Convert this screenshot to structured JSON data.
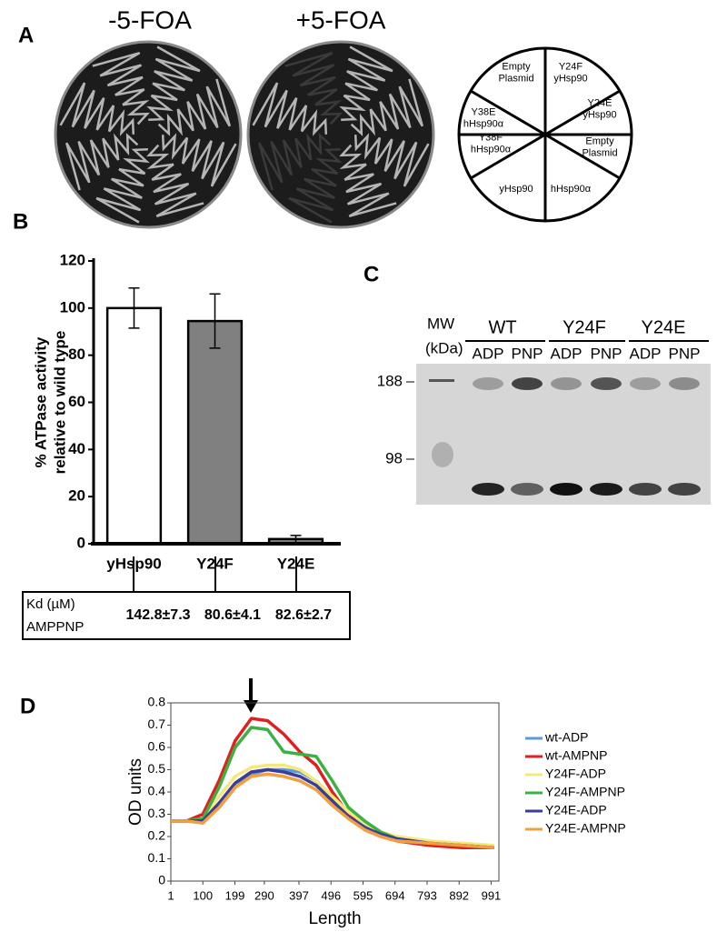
{
  "panel_a": {
    "label": "A",
    "plate_titles": [
      "-5-FOA",
      "+5-FOA"
    ],
    "key_segments": [
      [
        "Empty",
        "Plasmid"
      ],
      [
        "Y24F",
        "yHsp90"
      ],
      [
        "Y24E",
        "yHsp90"
      ],
      [
        "Y38E",
        "hHsp90α"
      ],
      [
        "Y38F",
        "hHsp90α"
      ],
      [
        "Empty",
        "Plasmid"
      ],
      [
        "hHsp90α"
      ],
      [
        "yHsp90"
      ]
    ]
  },
  "panel_b": {
    "label": "B",
    "kd_table": {
      "row_label": [
        "Kd (µM)",
        "AMPPNP"
      ],
      "values": [
        "142.8±7.3",
        "80.6±4.1",
        "82.6±2.7"
      ]
    }
  },
  "panel_c": {
    "label": "C",
    "mw_label": [
      "MW",
      "(kDa)"
    ],
    "groups": [
      "WT",
      "Y24F",
      "Y24E"
    ],
    "lanes": [
      "ADP",
      "PNP",
      "ADP",
      "PNP",
      "ADP",
      "PNP"
    ],
    "markers": [
      188,
      98
    ]
  },
  "panel_d": {
    "label": "D"
  },
  "chart_data": [
    {
      "type": "bar",
      "ylabel": [
        "% ATPase activity",
        "relative to wild type"
      ],
      "categories": [
        "yHsp90",
        "Y24F",
        "Y24E"
      ],
      "values": [
        100,
        94.5,
        2
      ],
      "errors": [
        8.5,
        11.5,
        1.5
      ],
      "colors": [
        "#ffffff",
        "#808080",
        "#808080"
      ],
      "ylim": [
        0,
        120
      ],
      "yticks": [
        0,
        20,
        40,
        60,
        80,
        100,
        120
      ]
    },
    {
      "type": "line",
      "xlabel": "Length",
      "ylabel": "OD units",
      "x": [
        1,
        50,
        100,
        150,
        200,
        250,
        300,
        350,
        400,
        450,
        500,
        550,
        600,
        650,
        700,
        800,
        900,
        1000
      ],
      "series": [
        {
          "name": "wt-ADP",
          "color": "#5b9bd5",
          "values": [
            0.27,
            0.27,
            0.27,
            0.33,
            0.42,
            0.48,
            0.5,
            0.5,
            0.49,
            0.45,
            0.38,
            0.31,
            0.25,
            0.21,
            0.19,
            0.17,
            0.16,
            0.15
          ]
        },
        {
          "name": "wt-AMPNP",
          "color": "#e02020",
          "values": [
            0.27,
            0.27,
            0.3,
            0.45,
            0.63,
            0.73,
            0.72,
            0.66,
            0.58,
            0.52,
            0.4,
            0.3,
            0.23,
            0.2,
            0.18,
            0.16,
            0.15,
            0.15
          ]
        },
        {
          "name": "Y24F-ADP",
          "color": "#f5e87a",
          "values": [
            0.27,
            0.27,
            0.28,
            0.38,
            0.47,
            0.51,
            0.52,
            0.52,
            0.5,
            0.45,
            0.38,
            0.31,
            0.26,
            0.22,
            0.2,
            0.18,
            0.17,
            0.16
          ]
        },
        {
          "name": "Y24F-AMPNP",
          "color": "#3cb043",
          "values": [
            0.27,
            0.27,
            0.28,
            0.42,
            0.6,
            0.69,
            0.68,
            0.58,
            0.57,
            0.56,
            0.45,
            0.33,
            0.27,
            0.22,
            0.19,
            0.17,
            0.16,
            0.15
          ]
        },
        {
          "name": "Y24E-ADP",
          "color": "#3b3b9a",
          "values": [
            0.27,
            0.27,
            0.27,
            0.35,
            0.44,
            0.49,
            0.5,
            0.49,
            0.47,
            0.43,
            0.36,
            0.29,
            0.24,
            0.21,
            0.19,
            0.17,
            0.16,
            0.15
          ]
        },
        {
          "name": "Y24E-AMPNP",
          "color": "#f0a040",
          "values": [
            0.27,
            0.27,
            0.26,
            0.33,
            0.42,
            0.47,
            0.48,
            0.47,
            0.45,
            0.41,
            0.34,
            0.28,
            0.23,
            0.2,
            0.18,
            0.17,
            0.16,
            0.15
          ]
        }
      ],
      "xlim": [
        1,
        1015
      ],
      "ylim": [
        0,
        0.8
      ],
      "xticks": [
        1,
        100,
        199,
        290,
        397,
        496,
        595,
        694,
        793,
        892,
        991
      ],
      "yticks": [
        0,
        0.1,
        0.2,
        0.3,
        0.4,
        0.5,
        0.6,
        0.7,
        0.8
      ],
      "legend": "right"
    }
  ]
}
